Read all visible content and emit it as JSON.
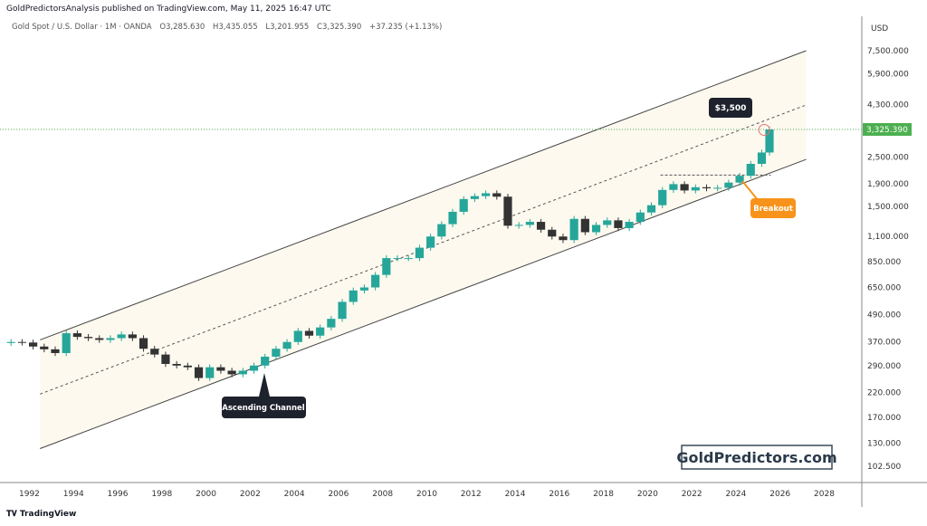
{
  "header": {
    "published": "GoldPredictorsAnalysis published on TradingView.com, May 11, 2025 16:47 UTC",
    "symbol": "Gold Spot / U.S. Dollar · 1M · OANDA",
    "open": "O3,285.630",
    "high": "H3,435.055",
    "low": "L3,201.955",
    "close": "C3,325.390",
    "change": "+37.235 (+1.13%)"
  },
  "footer": {
    "logo": "TradingView"
  },
  "watermark": "GoldPredictors.com",
  "colors": {
    "up": "#26a69a",
    "down": "#333333",
    "price_label": "#4caf50",
    "callout_dark": "#1e222d",
    "breakout": "#f7931a",
    "channel_fill": "#fdf9ef"
  },
  "chart_data": {
    "type": "candlestick",
    "currency": "USD",
    "yscale": "log",
    "ylim": [
      95,
      8500
    ],
    "xlim": [
      1991,
      2029.5
    ],
    "x_ticks": [
      "1992",
      "1994",
      "1996",
      "1998",
      "2000",
      "2002",
      "2004",
      "2006",
      "2008",
      "2010",
      "2012",
      "2014",
      "2016",
      "2018",
      "2020",
      "2022",
      "2024",
      "2026",
      "2028"
    ],
    "y_ticks": [
      "7,500.000",
      "5,900.000",
      "4,300.000",
      "2,500.000",
      "1,900.000",
      "1,500.000",
      "1,100.000",
      "850.000",
      "650.000",
      "490.000",
      "370.000",
      "290.000",
      "220.000",
      "170.000",
      "130.000",
      "102.500"
    ],
    "last_price": "3,325.390",
    "x": [
      1991,
      1991.5,
      1992,
      1992.5,
      1993,
      1993.5,
      1994,
      1994.5,
      1995,
      1995.5,
      1996,
      1996.5,
      1997,
      1997.5,
      1998,
      1998.5,
      1999,
      1999.5,
      2000,
      2000.5,
      2001,
      2001.5,
      2002,
      2002.5,
      2003,
      2003.5,
      2004,
      2004.5,
      2005,
      2005.5,
      2006,
      2006.5,
      2007,
      2007.5,
      2008,
      2008.5,
      2009,
      2009.5,
      2010,
      2010.5,
      2011,
      2011.5,
      2012,
      2012.5,
      2013,
      2013.5,
      2014,
      2014.5,
      2015,
      2015.5,
      2016,
      2016.5,
      2017,
      2017.5,
      2018,
      2018.5,
      2019,
      2019.5,
      2020,
      2020.5,
      2021,
      2021.5,
      2022,
      2022.5,
      2023,
      2023.5,
      2024,
      2024.5,
      2025,
      2025.35
    ],
    "close": [
      370,
      368,
      353,
      343,
      330,
      405,
      390,
      385,
      378,
      385,
      400,
      385,
      345,
      325,
      295,
      290,
      285,
      255,
      285,
      275,
      265,
      275,
      290,
      318,
      345,
      370,
      415,
      395,
      430,
      470,
      560,
      630,
      650,
      740,
      880,
      880,
      880,
      980,
      1100,
      1250,
      1420,
      1620,
      1670,
      1720,
      1660,
      1230,
      1240,
      1280,
      1180,
      1100,
      1060,
      1320,
      1150,
      1240,
      1300,
      1200,
      1280,
      1410,
      1520,
      1780,
      1890,
      1770,
      1830,
      1810,
      1820,
      1920,
      2060,
      2330,
      2620,
      3325
    ],
    "channel": {
      "upper": [
        [
          1992.5,
          378
        ],
        [
          2027.2,
          7500
        ]
      ],
      "middle": [
        [
          1992.5,
          216
        ],
        [
          2027.2,
          4280
        ]
      ],
      "lower": [
        [
          1992.5,
          123
        ],
        [
          2027.2,
          2440
        ]
      ]
    },
    "resistance": {
      "price": 2075,
      "from": 2020.6,
      "to": 2025.6
    },
    "annotations": [
      {
        "text": "$3,500",
        "x": 2025.3,
        "price": 3500
      },
      {
        "text": "Breakout",
        "x": 2024.3,
        "price": 2000
      },
      {
        "text": "Ascending Channel",
        "x": 2002.6,
        "price": 255
      }
    ]
  }
}
